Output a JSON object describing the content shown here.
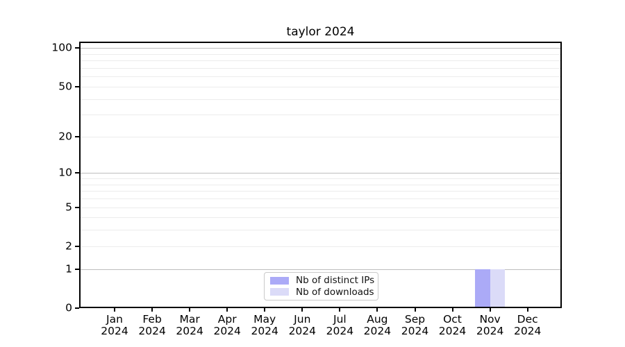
{
  "chart_data": {
    "type": "bar",
    "title": "taylor 2024",
    "yscale": "log1p",
    "ylim": [
      0,
      115
    ],
    "grid": true,
    "legend_position": "lower center",
    "categories": [
      {
        "month": "Jan",
        "year": "2024"
      },
      {
        "month": "Feb",
        "year": "2024"
      },
      {
        "month": "Mar",
        "year": "2024"
      },
      {
        "month": "Apr",
        "year": "2024"
      },
      {
        "month": "May",
        "year": "2024"
      },
      {
        "month": "Jun",
        "year": "2024"
      },
      {
        "month": "Jul",
        "year": "2024"
      },
      {
        "month": "Aug",
        "year": "2024"
      },
      {
        "month": "Sep",
        "year": "2024"
      },
      {
        "month": "Oct",
        "year": "2024"
      },
      {
        "month": "Nov",
        "year": "2024"
      },
      {
        "month": "Dec",
        "year": "2024"
      }
    ],
    "series": [
      {
        "name": "Nb of distinct IPs",
        "color": "#abaaf7",
        "values": [
          0,
          0,
          0,
          0,
          0,
          0,
          0,
          0,
          0,
          0,
          1,
          0
        ]
      },
      {
        "name": "Nb of downloads",
        "color": "#dbdbf8",
        "values": [
          0,
          0,
          0,
          0,
          0,
          0,
          0,
          0,
          0,
          0,
          1,
          0
        ]
      }
    ],
    "y_ticks": [
      {
        "value": 0,
        "label": "0"
      },
      {
        "value": 1,
        "label": "1"
      },
      {
        "value": 2,
        "label": "2"
      },
      {
        "value": 5,
        "label": "5"
      },
      {
        "value": 10,
        "label": "10"
      },
      {
        "value": 20,
        "label": "20"
      },
      {
        "value": 50,
        "label": "50"
      },
      {
        "value": 100,
        "label": "100"
      }
    ],
    "gridlines": {
      "major": [
        1,
        10,
        100
      ],
      "minor": [
        2,
        3,
        4,
        5,
        6,
        7,
        8,
        9,
        20,
        30,
        40,
        50,
        60,
        70,
        80,
        90
      ]
    }
  },
  "colors": {
    "major_grid": "#bdbdbd",
    "minor_grid": "#ececec",
    "axis": "#000000",
    "text": "#000000",
    "legend_border": "#c9c9c9",
    "background": "#ffffff"
  }
}
